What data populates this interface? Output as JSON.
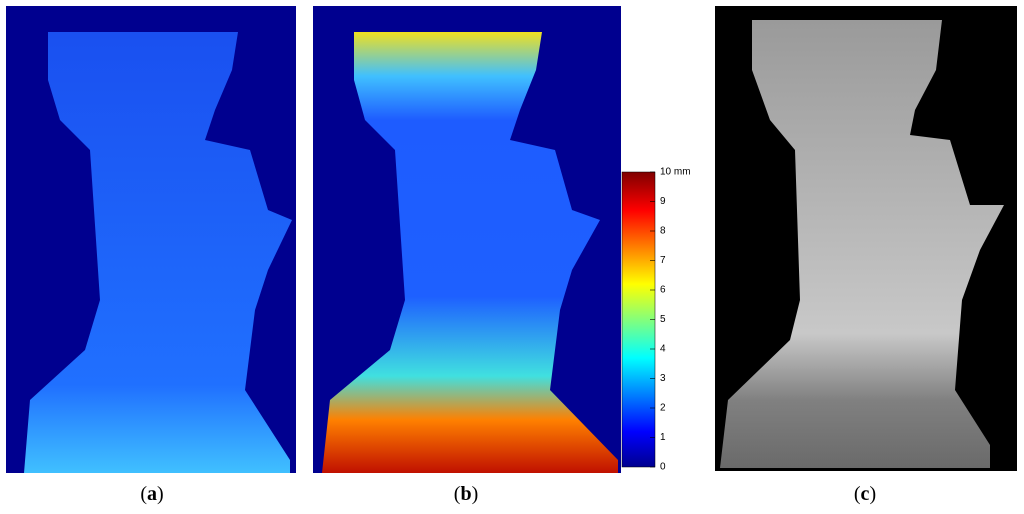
{
  "panels": [
    {
      "label": "(a)"
    },
    {
      "label": "(b)"
    },
    {
      "label": "(c)"
    }
  ],
  "colorbar": {
    "lim": [
      0,
      10
    ],
    "ticks": [
      0,
      1,
      2,
      3,
      4,
      5,
      6,
      7,
      8,
      9,
      {
        "value": 10,
        "label": "10 mm"
      }
    ]
  }
}
